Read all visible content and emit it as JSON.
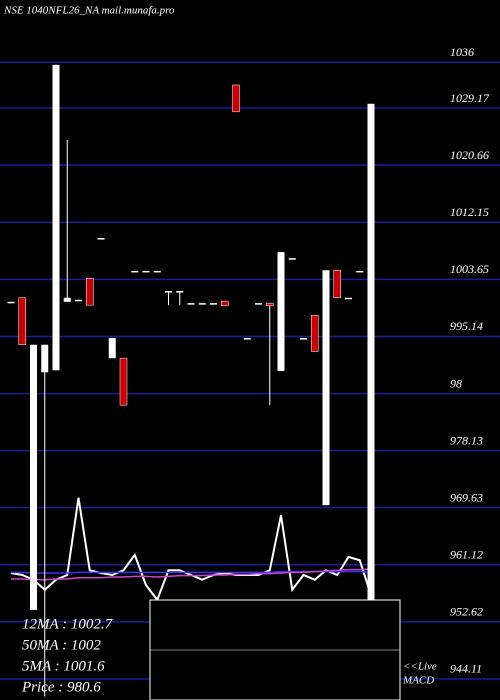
{
  "chart_data": {
    "type": "candlestick",
    "title": "NSE 1040NFL26_NA mail.munafa.pro",
    "up_color": "#ffffff",
    "down_color": "#cc0000",
    "grid": true,
    "grid_color": "#1c1c99",
    "ylim": [
      940.98,
      1045.26
    ],
    "yticks": [
      1036,
      1029.17,
      1020.66,
      1012.15,
      1003.65,
      995.14,
      {
        "value": 986.63,
        "label": "98"
      },
      978.13,
      969.63,
      961.12,
      952.62,
      944.11
    ],
    "open": [
      1000.3,
      1000.9,
      954.4,
      989.8,
      990.1,
      1000.3,
      1000.6,
      1003.8,
      1009.8,
      991.9,
      991.9,
      1004.9,
      1004.9,
      1004.9,
      1001.9,
      1001.9,
      1000.1,
      1000.1,
      1000.1,
      1000.4,
      1032.6,
      994.9,
      1000.1,
      1000.1,
      990.0,
      1006.8,
      994.9,
      998.3,
      970.0,
      1005.0,
      1000.9,
      1004.9,
      955.9
    ],
    "high": [
      1000.3,
      1000.9,
      993.9,
      993.9,
      1035.6,
      1024.4,
      1000.6,
      1003.8,
      1009.8,
      994.9,
      991.9,
      1004.9,
      1004.9,
      1004.9,
      1001.9,
      1001.9,
      1000.1,
      1000.1,
      1000.1,
      1000.4,
      1032.6,
      994.9,
      1000.1,
      1000.1,
      1007.7,
      1006.8,
      994.9,
      998.3,
      1005.0,
      1005.0,
      1000.9,
      1004.9,
      1029.8
    ],
    "low": [
      1000.3,
      993.9,
      954.4,
      941.5,
      990.1,
      1000.3,
      1000.6,
      999.8,
      1009.8,
      991.9,
      984.9,
      1004.9,
      1004.9,
      1004.9,
      999.8,
      999.8,
      1000.1,
      1000.1,
      1000.1,
      999.7,
      1028.6,
      994.9,
      1000.1,
      984.9,
      990.0,
      1006.8,
      994.9,
      992.9,
      970.0,
      1000.9,
      1000.9,
      1004.9,
      955.9
    ],
    "close": [
      1000.3,
      993.9,
      993.9,
      993.9,
      1035.6,
      1000.9,
      1000.6,
      999.8,
      1009.8,
      994.9,
      984.9,
      1004.9,
      1004.9,
      1004.9,
      1001.9,
      1001.9,
      1000.1,
      1000.1,
      1000.1,
      999.7,
      1028.6,
      994.9,
      1000.1,
      999.7,
      1007.7,
      1006.8,
      994.9,
      992.9,
      1005.0,
      1000.9,
      1000.9,
      1004.9,
      1029.8
    ],
    "series": [
      {
        "color": "#ffffff",
        "values": [
          959.9,
          959.6,
          958.9,
          957.4,
          958.9,
          959.6,
          971.1,
          960.3,
          959.9,
          959.6,
          960.3,
          962.6,
          958.1,
          955.9,
          960.3,
          960.3,
          959.6,
          958.9,
          959.6,
          959.9,
          959.6,
          959.6,
          959.6,
          960.3,
          968.5,
          957.4,
          959.6,
          958.9,
          960.3,
          959.6,
          962.3,
          961.8,
          956.6
        ]
      },
      {
        "color": "#3333ff",
        "values": [
          960.0,
          960.0,
          959.9,
          959.9,
          959.9,
          959.9,
          960.0,
          960.0,
          960.0,
          960.0,
          960.0,
          960.0,
          960.0,
          960.0,
          960.0,
          960.0,
          960.0,
          960.0,
          960.0,
          960.0,
          960.0,
          960.0,
          960.0,
          960.0,
          960.1,
          960.1,
          960.1,
          960.1,
          960.1,
          960.1,
          960.1,
          960.1,
          960.0
        ]
      },
      {
        "color": "#cc44cc",
        "values": [
          959.0,
          959.0,
          958.9,
          958.9,
          959.0,
          959.0,
          959.2,
          959.2,
          959.2,
          959.3,
          959.3,
          959.4,
          959.4,
          959.3,
          959.4,
          959.5,
          959.5,
          959.5,
          959.6,
          959.6,
          959.7,
          959.7,
          959.8,
          959.8,
          959.9,
          960.0,
          960.0,
          960.1,
          960.2,
          960.3,
          960.4,
          960.4,
          960.5
        ]
      }
    ],
    "stats": [
      "12MA : 1002.7",
      "50MA : 1002",
      "5MA : 1001.6",
      "Price   : 980.6"
    ],
    "macd_label": [
      "<<Live",
      "MACD"
    ]
  }
}
